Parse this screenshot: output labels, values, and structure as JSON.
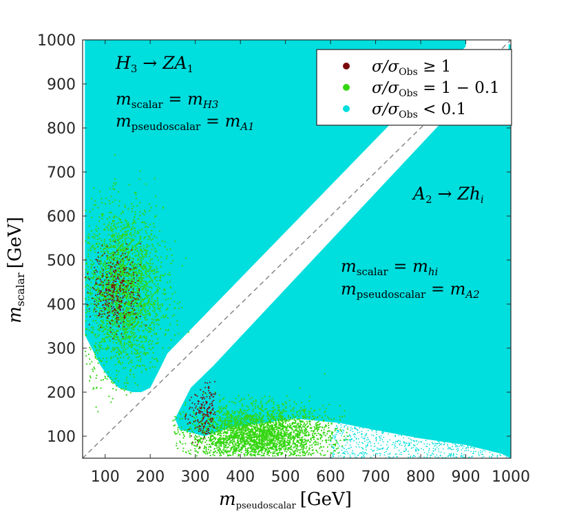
{
  "chart_data": {
    "type": "scatter",
    "title": "",
    "xlabel": {
      "main": "m",
      "sub": "pseudoscalar",
      "unit": "[GeV]"
    },
    "ylabel": {
      "main": "m",
      "sub": "scalar",
      "unit": "[GeV]"
    },
    "xlim": [
      50,
      1000
    ],
    "ylim": [
      50,
      1000
    ],
    "x_ticks": [
      100,
      200,
      300,
      400,
      500,
      600,
      700,
      800,
      900,
      1000
    ],
    "y_ticks": [
      100,
      200,
      300,
      400,
      500,
      600,
      700,
      800,
      900,
      1000
    ],
    "grid": false,
    "diagonal_reference": {
      "from": [
        50,
        50
      ],
      "to": [
        1000,
        1000
      ],
      "style": "dashed",
      "color": "#7f7f7f"
    },
    "legend": {
      "position": "top-right",
      "entries": [
        {
          "label": "σ/σ",
          "sub": "Obs",
          "rel": " ≥ 1",
          "color": "#7a0a0a"
        },
        {
          "label": "σ/σ",
          "sub": "Obs",
          "rel": " = 1 − 0.1",
          "color": "#33d611"
        },
        {
          "label": "σ/σ",
          "sub": "Obs",
          "rel": " < 0.1",
          "color": "#00dede"
        }
      ]
    },
    "series": [
      {
        "name": "σ/σObs < 0.1",
        "color": "#00dede",
        "regions": [
          {
            "name": "upper-left band H3→ZA1",
            "polygon": [
              [
                55,
                1000
              ],
              [
                900,
                1000
              ],
              [
                900,
                985
              ],
              [
                238,
                288
              ],
              [
                220,
                250
              ],
              [
                200,
                210
              ],
              [
                180,
                200
              ],
              [
                160,
                200
              ],
              [
                130,
                210
              ],
              [
                110,
                230
              ],
              [
                90,
                260
              ],
              [
                70,
                300
              ],
              [
                55,
                330
              ]
            ]
          },
          {
            "name": "lower-right band A2→Zhi",
            "polygon": [
              [
                255,
                140
              ],
              [
                290,
                210
              ],
              [
                340,
                260
              ],
              [
                995,
                975
              ],
              [
                995,
                990
              ],
              [
                1000,
                990
              ],
              [
                1000,
                50
              ],
              [
                980,
                60
              ],
              [
                900,
                80
              ],
              [
                800,
                95
              ],
              [
                720,
                110
              ],
              [
                620,
                130
              ],
              [
                520,
                140
              ],
              [
                380,
                120
              ],
              [
                320,
                100
              ],
              [
                265,
                115
              ]
            ]
          }
        ]
      },
      {
        "name": "σ/σObs = 1 − 0.1",
        "color": "#33d611",
        "regions": [
          {
            "name": "upper-left cluster",
            "center": [
              140,
              430
            ],
            "spread": [
              80,
              170
            ]
          },
          {
            "name": "lower cluster",
            "center": [
              440,
              100
            ],
            "spread": [
              140,
              60
            ]
          }
        ]
      },
      {
        "name": "σ/σObs ≥ 1",
        "color": "#7a0a0a",
        "regions": [
          {
            "name": "upper-left cluster",
            "center": [
              125,
              430
            ],
            "spread": [
              55,
              90
            ]
          },
          {
            "name": "lower cluster",
            "center": [
              320,
              150
            ],
            "spread": [
              35,
              70
            ]
          }
        ]
      }
    ],
    "annotations": {
      "top_left": {
        "process": {
          "a": "H",
          "a_sub": "3",
          "b": " → ZA",
          "b_sub": "1"
        },
        "line1": {
          "lhs": "m",
          "lhs_sub": "scalar",
          "eq": " = m",
          "rhs_sub": "H3"
        },
        "line2": {
          "lhs": "m",
          "lhs_sub": "pseudoscalar",
          "eq": " = m",
          "rhs_sub": "A1"
        }
      },
      "right": {
        "process": {
          "a": "A",
          "a_sub": "2",
          "b": " → Zh",
          "b_sub": "i"
        },
        "line1": {
          "lhs": "m",
          "lhs_sub": "scalar",
          "eq": " = m",
          "rhs_sub": "hi"
        },
        "line2": {
          "lhs": "m",
          "lhs_sub": "pseudoscalar",
          "eq": " = m",
          "rhs_sub": "A2"
        }
      }
    }
  }
}
